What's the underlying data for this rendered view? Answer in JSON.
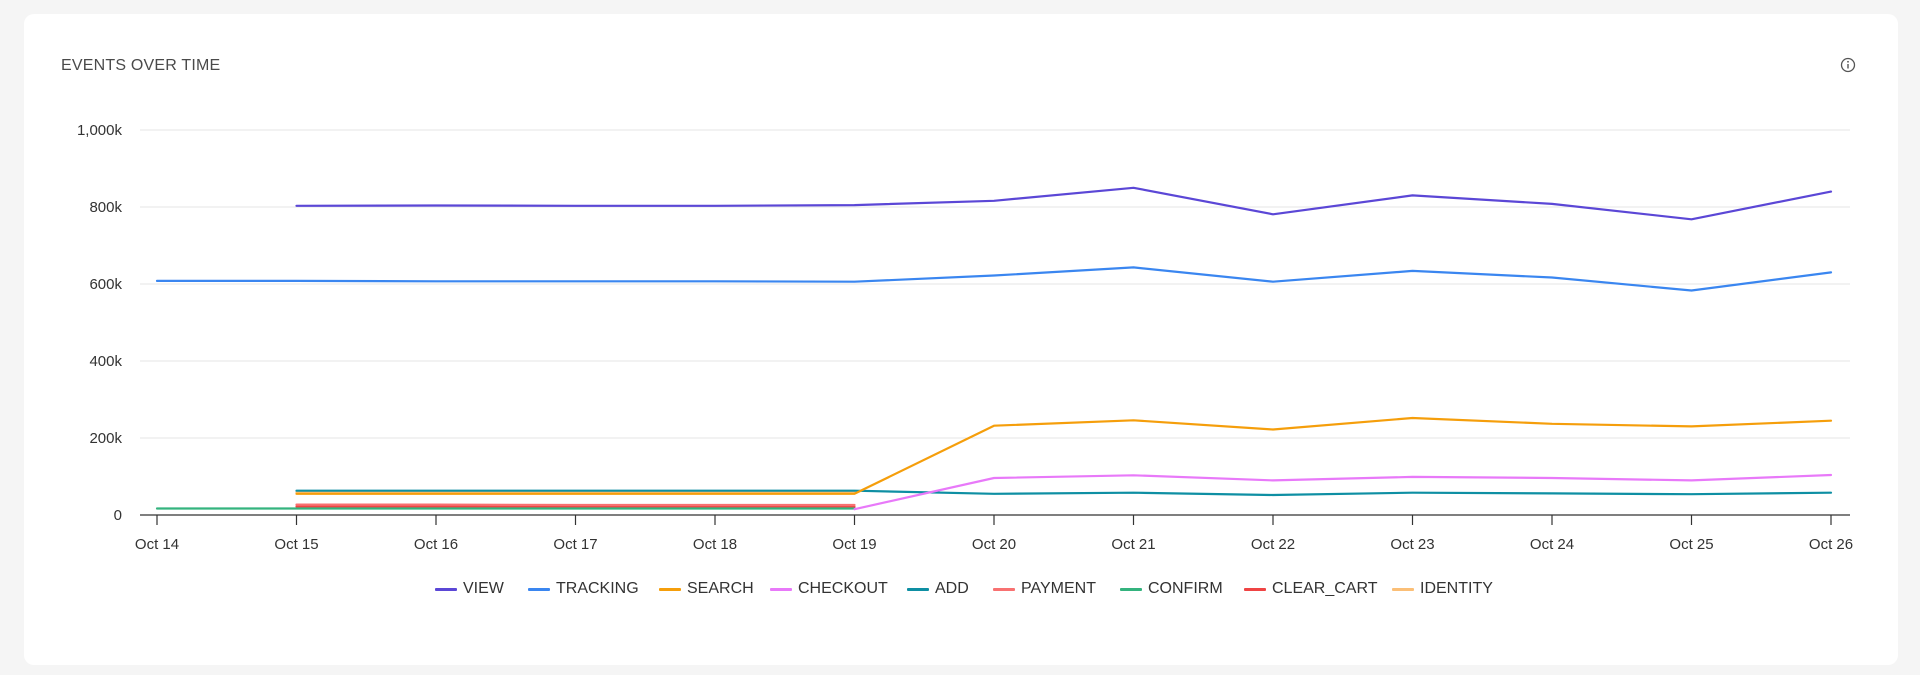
{
  "card": {
    "title": "EVENTS OVER TIME",
    "info_icon": "info-circle-icon"
  },
  "chart_data": {
    "type": "line",
    "title": "EVENTS OVER TIME",
    "xlabel": "",
    "ylabel": "",
    "ylim": [
      0,
      1000000
    ],
    "y_ticks": [
      0,
      200000,
      400000,
      600000,
      800000,
      1000000
    ],
    "y_tick_labels": [
      "0",
      "200k",
      "400k",
      "600k",
      "800k",
      "1,000k"
    ],
    "grid": true,
    "legend_position": "bottom-center",
    "x": [
      "Oct 14",
      "Oct 15",
      "Oct 16",
      "Oct 17",
      "Oct 18",
      "Oct 19",
      "Oct 20",
      "Oct 21",
      "Oct 22",
      "Oct 23",
      "Oct 24",
      "Oct 25",
      "Oct 26"
    ],
    "series": [
      {
        "name": "VIEW",
        "color": "#5b47d6",
        "values": [
          null,
          803000,
          804000,
          803000,
          803000,
          805000,
          816000,
          850000,
          781000,
          830000,
          808000,
          768000,
          840000
        ]
      },
      {
        "name": "TRACKING",
        "color": "#3a86f0",
        "values": [
          608000,
          608000,
          607000,
          607000,
          607000,
          606000,
          622000,
          643000,
          606000,
          634000,
          617000,
          583000,
          630000
        ]
      },
      {
        "name": "SEARCH",
        "color": "#f59e0b",
        "values": [
          null,
          55000,
          55000,
          55000,
          55000,
          55000,
          232000,
          246000,
          222000,
          252000,
          237000,
          230000,
          245000
        ]
      },
      {
        "name": "CHECKOUT",
        "color": "#e879f9",
        "values": [
          null,
          null,
          null,
          null,
          null,
          15000,
          96000,
          103000,
          90000,
          99000,
          96000,
          90000,
          104000
        ]
      },
      {
        "name": "ADD",
        "color": "#0e8fa3",
        "values": [
          null,
          63000,
          63000,
          63000,
          63000,
          63000,
          55000,
          58000,
          52000,
          58000,
          56000,
          54000,
          58000
        ]
      },
      {
        "name": "PAYMENT",
        "color": "#f87171",
        "values": [
          null,
          27000,
          27000,
          26000,
          26000,
          26000,
          null,
          null,
          null,
          null,
          null,
          null,
          null
        ]
      },
      {
        "name": "CONFIRM",
        "color": "#34b37e",
        "values": [
          17000,
          17000,
          17000,
          17000,
          17000,
          17000,
          null,
          null,
          null,
          null,
          null,
          null,
          null
        ]
      },
      {
        "name": "CLEAR_CART",
        "color": "#ef4444",
        "values": [
          null,
          22000,
          22000,
          21000,
          21000,
          21000,
          null,
          null,
          null,
          null,
          null,
          null,
          null
        ]
      },
      {
        "name": "IDENTITY",
        "color": "#fbbf77",
        "values": [
          null,
          59000,
          59000,
          59000,
          59000,
          59000,
          null,
          null,
          null,
          null,
          null,
          null,
          null
        ]
      }
    ]
  }
}
